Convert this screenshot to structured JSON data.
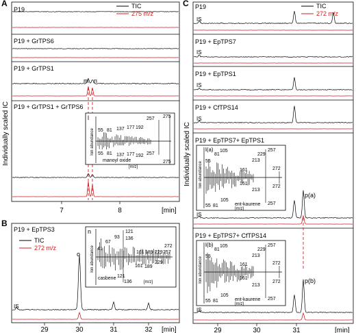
{
  "panels": {
    "A": {
      "label": "A",
      "ylabel": "Individually scaled IC",
      "xlabel": "[min]",
      "ticks": [
        "7",
        "8"
      ],
      "legend": {
        "tic": "TIC",
        "ion": "275 m/z"
      },
      "traces": [
        "P19",
        "P19 + GrTPS6",
        "P19 + GrTPS1",
        "P19 + GrTPS1 + GrTPS6"
      ],
      "peaks": {
        "m": "m",
        "n": "n"
      },
      "inset": {
        "label": "l",
        "ylabel": "Ion abundance",
        "xlabel": "[m/z]",
        "compound": "manoyl oxide",
        "top_labels": [
          "55",
          "81",
          "137",
          "177",
          "192",
          "257",
          "275"
        ],
        "bottom_labels": [
          "55",
          "81",
          "137",
          "177",
          "192",
          "257",
          "275"
        ]
      }
    },
    "B": {
      "label": "B",
      "title": "P19 + EpTPS3",
      "xlabel": "[min]",
      "ticks": [
        "29",
        "30",
        "31",
        "32"
      ],
      "legend": {
        "tic": "TIC",
        "ion": "272 m/z"
      },
      "peak": "o",
      "is": "IS",
      "inset": {
        "label": "n",
        "ylabel": "Ion abundance",
        "xlabel": "[m/z]",
        "compound": "casbene",
        "top_labels": [
          "41",
          "67",
          "93",
          "121",
          "136",
          "161",
          "189",
          "229",
          "257",
          "272"
        ],
        "bottom_labels": [
          "161",
          "189",
          "229",
          "121",
          "136"
        ]
      }
    },
    "C": {
      "label": "C",
      "ylabel": "Individually scaled IC",
      "xlabel": "[min]",
      "ticks": [
        "29",
        "30",
        "31"
      ],
      "legend": {
        "tic": "TIC",
        "ion": "272 m/z"
      },
      "traces": [
        "P19",
        "P19 + EpTPS7",
        "P19 + EpTPS1",
        "P19 + CfTPS14",
        "P19 + EpTPS7+ EpTPS1",
        "P19 + EpTPS7+ CfTPS14"
      ],
      "is": "IS",
      "peaks": {
        "pa": "p(a)",
        "pb": "p(b)"
      },
      "inset_a": {
        "label": "l(a)",
        "ylabel": "Ion abundance",
        "xlabel": "[m/z]",
        "compound": "ent-kaurene",
        "top_labels": [
          "55",
          "81",
          "105",
          "161",
          "213",
          "229",
          "257",
          "272"
        ],
        "bottom_labels": [
          "55",
          "81",
          "105",
          "161",
          "213",
          "257",
          "272"
        ]
      },
      "inset_b": {
        "label": "l(b)",
        "ylabel": "Ion abundance",
        "xlabel": "[m/z]",
        "compound": "ent-kaurene",
        "top_labels": [
          "55",
          "81",
          "105",
          "161",
          "213",
          "229",
          "257",
          "272"
        ],
        "bottom_labels": [
          "55",
          "81",
          "105",
          "161",
          "213",
          "257",
          "272"
        ]
      }
    }
  },
  "chart_data": [
    {
      "type": "line",
      "panel": "A",
      "xlabel": "[min]",
      "ylabel": "Individually scaled IC",
      "xlim": [
        6.7,
        8.9
      ],
      "series": [
        {
          "name": "TIC"
        },
        {
          "name": "275 m/z"
        }
      ],
      "peaks": [
        {
          "label": "m",
          "x": 7.45
        },
        {
          "label": "n",
          "x": 7.52
        }
      ]
    },
    {
      "type": "line",
      "panel": "B",
      "xlabel": "[min]",
      "xlim": [
        28.4,
        32.6
      ],
      "series": [
        {
          "name": "TIC"
        },
        {
          "name": "272 m/z"
        }
      ],
      "peaks": [
        {
          "label": "o",
          "x": 30.02
        }
      ]
    },
    {
      "type": "line",
      "panel": "C",
      "xlabel": "[min]",
      "ylabel": "Individually scaled IC",
      "xlim": [
        28.2,
        32.6
      ],
      "series": [
        {
          "name": "TIC"
        },
        {
          "name": "272 m/z"
        }
      ],
      "peaks": [
        {
          "label": "p(a)",
          "x": 31.48
        },
        {
          "label": "p(b)",
          "x": 31.48
        }
      ]
    }
  ]
}
